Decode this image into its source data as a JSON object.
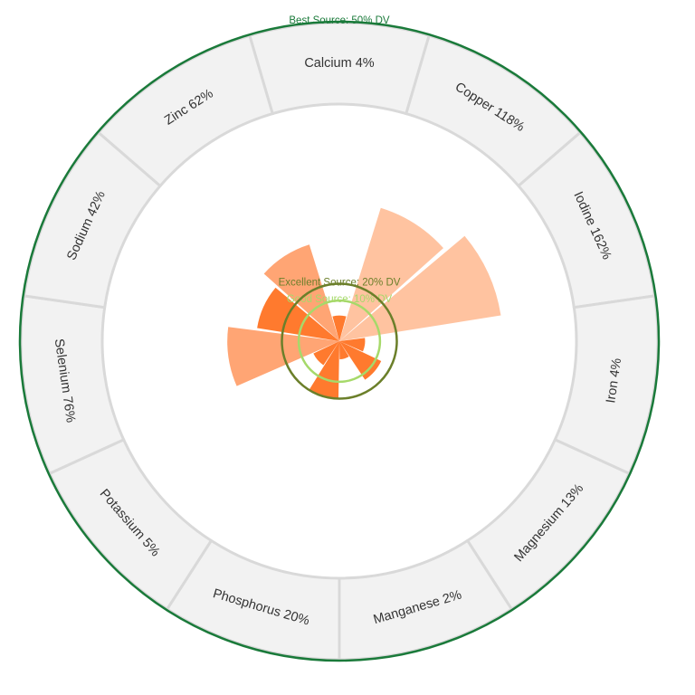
{
  "chart_data": {
    "type": "polar-bar",
    "title": "",
    "unit": "%",
    "categories": [
      "Calcium",
      "Copper",
      "Iodine",
      "Iron",
      "Magnesium",
      "Manganese",
      "Phosphorus",
      "Potassium",
      "Selenium",
      "Sodium",
      "Zinc"
    ],
    "values": [
      4,
      118,
      162,
      4,
      13,
      2,
      20,
      5,
      76,
      42,
      62
    ],
    "labels": [
      "Calcium 4%",
      "Copper 118%",
      "Iodine 162%",
      "Iron 4%",
      "Magnesium 13%",
      "Manganese 2%",
      "Phosphorus 20%",
      "Potassium 5%",
      "Selenium 76%",
      "Sodium 42%",
      "Zinc 62%"
    ],
    "thresholds": [
      {
        "value": 10,
        "label": "Good Source: 10% DV",
        "color": "#a6d96a"
      },
      {
        "value": 20,
        "label": "Excellent Source: 20% DV",
        "color": "#6b7f2a"
      },
      {
        "value": 50,
        "label": "Best Source: 50% DV",
        "color": "#1a7a3a"
      }
    ],
    "colors": {
      "bar_strong": "#ff7a2e",
      "bar_medium": "#ffa574",
      "bar_light": "#ffc3a0",
      "label_band": "#f2f2f2",
      "band_border": "#d9d9d9"
    }
  }
}
